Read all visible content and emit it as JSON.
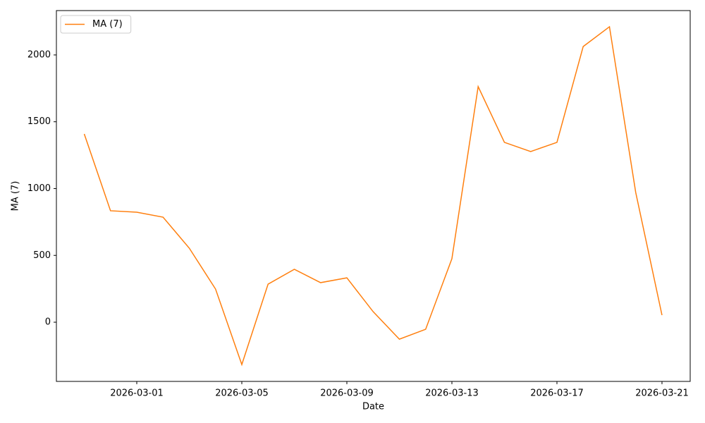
{
  "chart_data": {
    "type": "line",
    "x": [
      "2026-02-27",
      "2026-02-28",
      "2026-03-01",
      "2026-03-02",
      "2026-03-03",
      "2026-03-04",
      "2026-03-05",
      "2026-03-06",
      "2026-03-07",
      "2026-03-08",
      "2026-03-09",
      "2026-03-10",
      "2026-03-11",
      "2026-03-12",
      "2026-03-13",
      "2026-03-14",
      "2026-03-15",
      "2026-03-16",
      "2026-03-17",
      "2026-03-18",
      "2026-03-19",
      "2026-03-20",
      "2026-03-21"
    ],
    "series": [
      {
        "name": "MA (7)",
        "color": "#ff7f0e",
        "values": [
          1409,
          834,
          823,
          786,
          554,
          248,
          -317,
          285,
          396,
          296,
          332,
          79,
          -127,
          -53,
          475,
          1763,
          1346,
          1277,
          1346,
          2063,
          2211,
          971,
          53
        ]
      }
    ],
    "xlabel": "Date",
    "ylabel": "MA (7)",
    "xlim": [
      "2026-02-25T22:33Z",
      "2026-03-22T01:47Z"
    ],
    "xticks": [
      "2026-03-01",
      "2026-03-05",
      "2026-03-09",
      "2026-03-13",
      "2026-03-17",
      "2026-03-21"
    ],
    "ylim": [
      -443,
      2332
    ],
    "yticks": [
      0,
      500,
      1000,
      1500,
      2000
    ],
    "grid": false,
    "legend": "upper-left"
  }
}
